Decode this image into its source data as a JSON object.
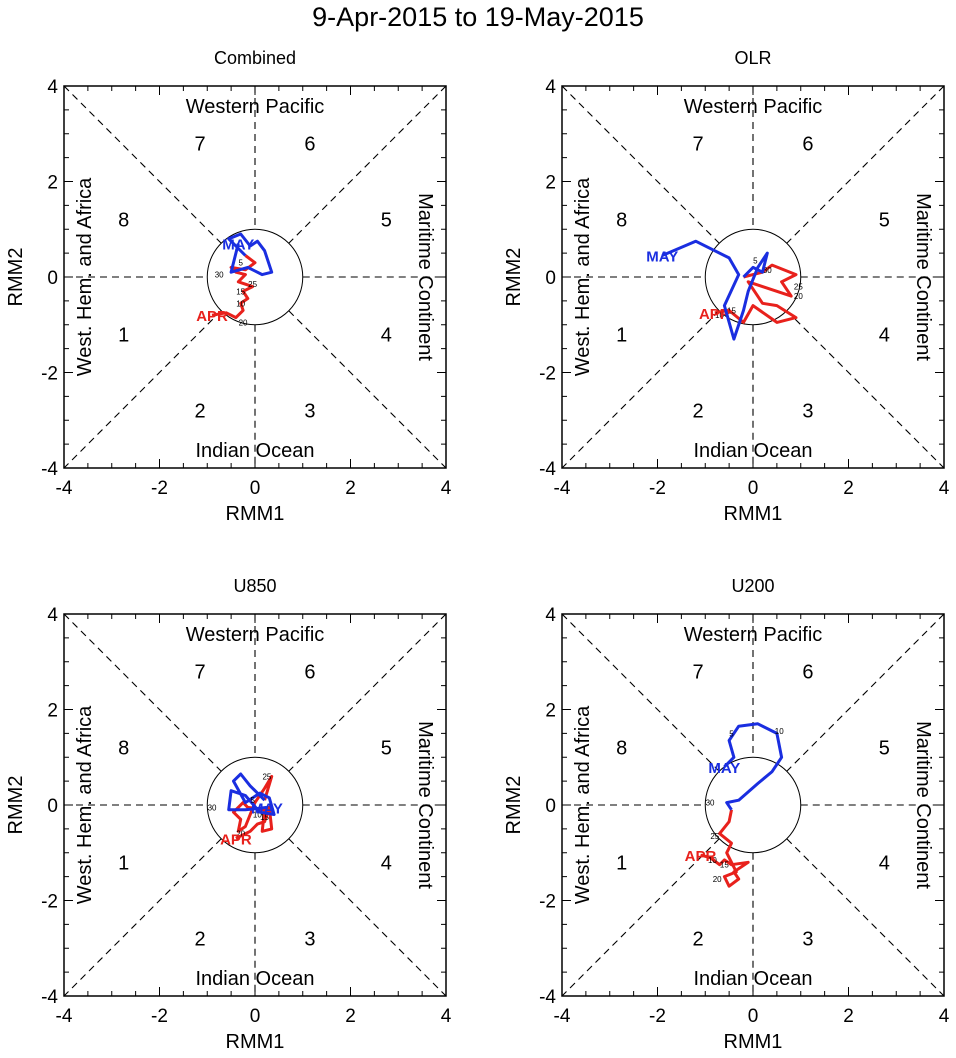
{
  "title": "9-Apr-2015 to 19-May-2015",
  "colors": {
    "april": "#e8211c",
    "may": "#1a2ee0",
    "axes": "#000000"
  },
  "chart_data": [
    {
      "type": "line",
      "subtitle": "Combined",
      "xlabel": "RMM1",
      "ylabel": "RMM2",
      "xlim": [
        -4,
        4
      ],
      "ylim": [
        -4,
        4
      ],
      "ticks": [
        "-4",
        "-2",
        "0",
        "2",
        "4"
      ],
      "regions": {
        "top": "Western Pacific",
        "bottom": "Indian Ocean",
        "left": "West. Hem. and Africa",
        "right": "Maritime Continent"
      },
      "phases": [
        "1",
        "2",
        "3",
        "4",
        "5",
        "6",
        "7",
        "8"
      ],
      "series": [
        {
          "name": "APR",
          "color": "#e8211c",
          "label": "APR",
          "points": [
            [
              -0.9,
              -0.8
            ],
            [
              -0.6,
              -0.75
            ],
            [
              -0.4,
              -0.85
            ],
            [
              -0.25,
              -0.7
            ],
            [
              -0.3,
              -0.55
            ],
            [
              -0.15,
              -0.45
            ],
            [
              -0.25,
              -0.3
            ],
            [
              -0.05,
              -0.2
            ],
            [
              -0.35,
              -0.1
            ],
            [
              -0.2,
              0.05
            ],
            [
              -0.4,
              0.1
            ],
            [
              -0.5,
              0.2
            ],
            [
              -0.2,
              0.15
            ],
            [
              0.0,
              0.3
            ],
            [
              -0.2,
              0.45
            ]
          ],
          "day_labels": [
            {
              "text": "10",
              "at": [
                -0.3,
                -0.55
              ]
            },
            {
              "text": "15",
              "at": [
                -0.3,
                -0.3
              ]
            },
            {
              "text": "20",
              "at": [
                -0.25,
                -0.95
              ]
            },
            {
              "text": "25",
              "at": [
                -0.05,
                -0.15
              ]
            },
            {
              "text": "30",
              "at": [
                -0.75,
                0.05
              ]
            }
          ]
        },
        {
          "name": "MAY",
          "color": "#1a2ee0",
          "label": "MAY",
          "points": [
            [
              -0.2,
              0.45
            ],
            [
              -0.55,
              0.8
            ],
            [
              -0.3,
              0.9
            ],
            [
              -0.1,
              0.65
            ],
            [
              0.05,
              0.75
            ],
            [
              0.2,
              0.55
            ],
            [
              0.35,
              0.1
            ],
            [
              0.15,
              0.05
            ],
            [
              -0.15,
              0.2
            ],
            [
              -0.5,
              0.1
            ],
            [
              -0.35,
              0.7
            ]
          ],
          "day_labels": [
            {
              "text": "5",
              "at": [
                -0.3,
                0.3
              ]
            }
          ]
        }
      ]
    },
    {
      "type": "line",
      "subtitle": "OLR",
      "xlabel": "RMM1",
      "ylabel": "RMM2",
      "xlim": [
        -4,
        4
      ],
      "ylim": [
        -4,
        4
      ],
      "ticks": [
        "-4",
        "-2",
        "0",
        "2",
        "4"
      ],
      "regions": {
        "top": "Western Pacific",
        "bottom": "Indian Ocean",
        "left": "West. Hem. and Africa",
        "right": "Maritime Continent"
      },
      "phases": [
        "1",
        "2",
        "3",
        "4",
        "5",
        "6",
        "7",
        "8"
      ],
      "series": [
        {
          "name": "APR",
          "color": "#e8211c",
          "label": "APR",
          "points": [
            [
              -0.8,
              -0.75
            ],
            [
              -0.5,
              -0.7
            ],
            [
              -0.2,
              -0.95
            ],
            [
              0.0,
              -0.6
            ],
            [
              0.5,
              -0.95
            ],
            [
              0.9,
              -0.85
            ],
            [
              0.5,
              -0.6
            ],
            [
              0.2,
              -0.55
            ],
            [
              -0.1,
              -0.1
            ],
            [
              0.2,
              -0.2
            ],
            [
              0.8,
              -0.4
            ],
            [
              0.6,
              -0.1
            ],
            [
              0.9,
              0.05
            ],
            [
              0.4,
              0.25
            ],
            [
              0.2,
              0.1
            ],
            [
              0.0,
              0.05
            ],
            [
              -0.2,
              0.0
            ]
          ],
          "day_labels": [
            {
              "text": "10",
              "at": [
                -0.7,
                -0.8
              ]
            },
            {
              "text": "15",
              "at": [
                -0.45,
                -0.7
              ]
            },
            {
              "text": "20",
              "at": [
                0.95,
                -0.4
              ]
            },
            {
              "text": "25",
              "at": [
                0.95,
                -0.2
              ]
            },
            {
              "text": "30",
              "at": [
                0.3,
                0.15
              ]
            }
          ]
        },
        {
          "name": "MAY",
          "color": "#1a2ee0",
          "label": "MAY",
          "points": [
            [
              -0.2,
              0.0
            ],
            [
              0.0,
              0.2
            ],
            [
              0.2,
              0.1
            ],
            [
              0.3,
              0.5
            ],
            [
              0.1,
              0.2
            ],
            [
              -0.1,
              -0.3
            ],
            [
              -0.2,
              -0.7
            ],
            [
              -0.4,
              -1.3
            ],
            [
              -0.6,
              -0.6
            ],
            [
              -0.3,
              0.05
            ],
            [
              -0.5,
              0.4
            ],
            [
              -1.2,
              0.75
            ],
            [
              -1.9,
              0.45
            ]
          ],
          "day_labels": [
            {
              "text": "5",
              "at": [
                0.05,
                0.35
              ]
            }
          ]
        }
      ]
    },
    {
      "type": "line",
      "subtitle": "U850",
      "xlabel": "RMM1",
      "ylabel": "RMM2",
      "xlim": [
        -4,
        4
      ],
      "ylim": [
        -4,
        4
      ],
      "ticks": [
        "-4",
        "-2",
        "0",
        "2",
        "4"
      ],
      "regions": {
        "top": "Western Pacific",
        "bottom": "Indian Ocean",
        "left": "West. Hem. and Africa",
        "right": "Maritime Continent"
      },
      "phases": [
        "1",
        "2",
        "3",
        "4",
        "5",
        "6",
        "7",
        "8"
      ],
      "series": [
        {
          "name": "APR",
          "color": "#e8211c",
          "label": "APR",
          "points": [
            [
              -0.4,
              -0.7
            ],
            [
              -0.1,
              -0.55
            ],
            [
              0.05,
              -0.4
            ],
            [
              0.2,
              -0.35
            ],
            [
              0.3,
              -0.05
            ],
            [
              0.35,
              -0.5
            ],
            [
              0.15,
              -0.55
            ],
            [
              0.2,
              -0.1
            ],
            [
              -0.15,
              -0.05
            ],
            [
              -0.25,
              0.05
            ],
            [
              -0.45,
              -0.15
            ],
            [
              -0.3,
              -0.3
            ],
            [
              -0.35,
              -0.55
            ],
            [
              -0.2,
              -0.45
            ],
            [
              0.0,
              0.05
            ],
            [
              0.2,
              0.35
            ],
            [
              0.35,
              0.6
            ],
            [
              0.2,
              0.1
            ]
          ],
          "day_labels": [
            {
              "text": "10",
              "at": [
                0.05,
                -0.2
              ]
            },
            {
              "text": "15",
              "at": [
                0.2,
                -0.25
              ]
            },
            {
              "text": "20",
              "at": [
                -0.3,
                -0.6
              ]
            },
            {
              "text": "25",
              "at": [
                0.25,
                0.6
              ]
            },
            {
              "text": "30",
              "at": [
                -0.9,
                -0.05
              ]
            }
          ]
        },
        {
          "name": "MAY",
          "color": "#1a2ee0",
          "label": "MAY",
          "points": [
            [
              0.2,
              0.1
            ],
            [
              -0.1,
              0.4
            ],
            [
              -0.3,
              0.65
            ],
            [
              -0.45,
              0.5
            ],
            [
              -0.2,
              0.05
            ],
            [
              0.1,
              0.25
            ],
            [
              0.3,
              0.15
            ],
            [
              0.4,
              -0.2
            ],
            [
              0.1,
              -0.15
            ],
            [
              -0.2,
              0.2
            ],
            [
              -0.5,
              0.3
            ],
            [
              -0.55,
              -0.1
            ],
            [
              -0.2,
              -0.1
            ],
            [
              0.25,
              -0.05
            ]
          ],
          "day_labels": [
            {
              "text": "5",
              "at": [
                -0.05,
                0.1
              ]
            }
          ]
        }
      ]
    },
    {
      "type": "line",
      "subtitle": "U200",
      "xlabel": "RMM1",
      "ylabel": "RMM2",
      "xlim": [
        -4,
        4
      ],
      "ylim": [
        -4,
        4
      ],
      "ticks": [
        "-4",
        "-2",
        "0",
        "2",
        "4"
      ],
      "regions": {
        "top": "Western Pacific",
        "bottom": "Indian Ocean",
        "left": "West. Hem. and Africa",
        "right": "Maritime Continent"
      },
      "phases": [
        "1",
        "2",
        "3",
        "4",
        "5",
        "6",
        "7",
        "8"
      ],
      "series": [
        {
          "name": "APR",
          "color": "#e8211c",
          "label": "APR",
          "points": [
            [
              -1.1,
              -1.05
            ],
            [
              -0.9,
              -1.1
            ],
            [
              -0.7,
              -1.25
            ],
            [
              -0.6,
              -1.15
            ],
            [
              -0.45,
              -1.25
            ],
            [
              -0.1,
              -1.2
            ],
            [
              -0.4,
              -1.4
            ],
            [
              -0.3,
              -1.55
            ],
            [
              -0.5,
              -1.7
            ],
            [
              -0.6,
              -1.5
            ],
            [
              -0.35,
              -1.4
            ],
            [
              -0.55,
              -1.0
            ],
            [
              -0.45,
              -0.8
            ],
            [
              -0.7,
              -0.6
            ],
            [
              -0.5,
              -0.35
            ],
            [
              -0.45,
              -0.1
            ]
          ],
          "day_labels": [
            {
              "text": "10",
              "at": [
                -0.85,
                -1.15
              ]
            },
            {
              "text": "15",
              "at": [
                -0.6,
                -1.25
              ]
            },
            {
              "text": "20",
              "at": [
                -0.75,
                -1.55
              ]
            },
            {
              "text": "25",
              "at": [
                -0.8,
                -0.65
              ]
            },
            {
              "text": "30",
              "at": [
                -0.9,
                0.05
              ]
            }
          ]
        },
        {
          "name": "MAY",
          "color": "#1a2ee0",
          "label": "MAY",
          "points": [
            [
              -0.45,
              -0.1
            ],
            [
              -0.55,
              0.05
            ],
            [
              -0.3,
              0.1
            ],
            [
              0.1,
              0.45
            ],
            [
              0.4,
              0.7
            ],
            [
              0.6,
              1.0
            ],
            [
              0.5,
              1.5
            ],
            [
              0.1,
              1.7
            ],
            [
              -0.3,
              1.65
            ],
            [
              -0.5,
              1.35
            ],
            [
              -0.4,
              1.0
            ],
            [
              -0.6,
              0.8
            ]
          ],
          "day_labels": [
            {
              "text": "5",
              "at": [
                -0.45,
                1.5
              ]
            },
            {
              "text": "10",
              "at": [
                0.55,
                1.55
              ]
            }
          ]
        }
      ]
    }
  ]
}
